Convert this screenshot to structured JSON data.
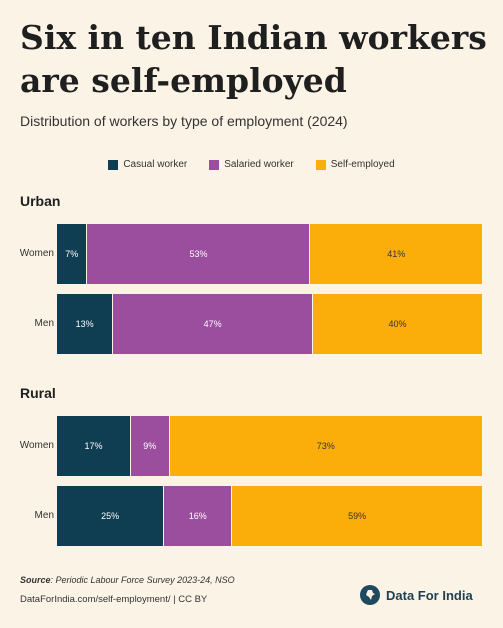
{
  "title": "Six in ten Indian workers are self-employed",
  "subtitle": "Distribution of workers by type of employment (2024)",
  "colors": {
    "casual": "#0f3d52",
    "salaried": "#9b4d9e",
    "self": "#fbad0a",
    "background": "#fbf3e6"
  },
  "chart_data": {
    "type": "bar",
    "orientation": "horizontal",
    "stacked": "100%",
    "legend": [
      {
        "key": "casual",
        "label": "Casual worker"
      },
      {
        "key": "salaried",
        "label": "Salaried worker"
      },
      {
        "key": "self",
        "label": "Self-employed"
      }
    ],
    "legend_position": "top-center",
    "groups": [
      {
        "name": "Urban",
        "rows": [
          {
            "label": "Women",
            "values": {
              "casual": 7,
              "salaried": 53,
              "self": 41
            },
            "labels": {
              "casual": "7%",
              "salaried": "53%",
              "self": "41%"
            }
          },
          {
            "label": "Men",
            "values": {
              "casual": 13,
              "salaried": 47,
              "self": 40
            },
            "labels": {
              "casual": "13%",
              "salaried": "47%",
              "self": "40%"
            }
          }
        ]
      },
      {
        "name": "Rural",
        "rows": [
          {
            "label": "Women",
            "values": {
              "casual": 17,
              "salaried": 9,
              "self": 73
            },
            "labels": {
              "casual": "17%",
              "salaried": "9%",
              "self": "73%"
            }
          },
          {
            "label": "Men",
            "values": {
              "casual": 25,
              "salaried": 16,
              "self": 59
            },
            "labels": {
              "casual": "25%",
              "salaried": "16%",
              "self": "59%"
            }
          }
        ]
      }
    ]
  },
  "footer": {
    "source_label": "Source",
    "source_text": ": Periodic Labour Force Survey 2023-24, NSO",
    "link_text": "DataForIndia.com/self-employment/  |  CC BY",
    "brand_name": "Data For India"
  }
}
